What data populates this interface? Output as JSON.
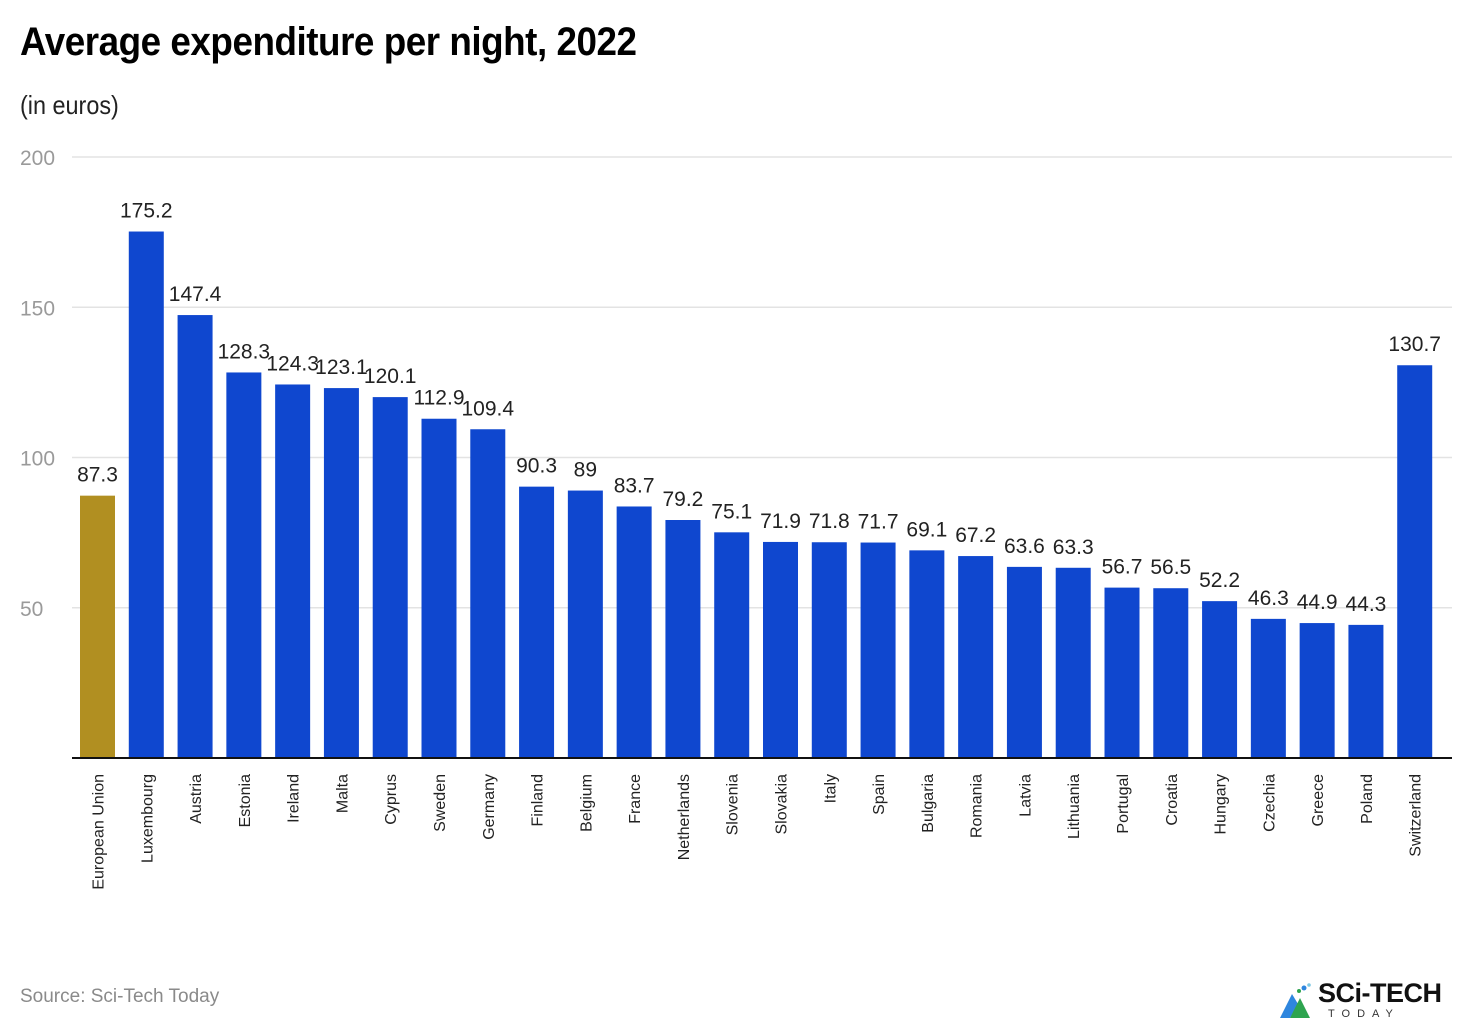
{
  "header": {
    "title": "Average expenditure per night, 2022",
    "subtitle": "(in euros)"
  },
  "footer": {
    "source": "Source: Sci-Tech Today",
    "logo_main": "SCi-TECH",
    "logo_sub": "TODAY"
  },
  "colors": {
    "highlight": "#B18F21",
    "bar": "#0F47CF",
    "grid": "#e3e3e3",
    "axis": "#111111"
  },
  "chart_data": {
    "type": "bar",
    "title": "Average expenditure per night, 2022",
    "subtitle": "(in euros)",
    "xlabel": "",
    "ylabel": "",
    "ylim": [
      0,
      200
    ],
    "yticks": [
      50,
      100,
      150,
      200
    ],
    "grid": true,
    "legend": "none",
    "categories": [
      "European Union",
      "Luxembourg",
      "Austria",
      "Estonia",
      "Ireland",
      "Malta",
      "Cyprus",
      "Sweden",
      "Germany",
      "Finland",
      "Belgium",
      "France",
      "Netherlands",
      "Slovenia",
      "Slovakia",
      "Italy",
      "Spain",
      "Bulgaria",
      "Romania",
      "Latvia",
      "Lithuania",
      "Portugal",
      "Croatia",
      "Hungary",
      "Czechia",
      "Greece",
      "Poland",
      "Switzerland"
    ],
    "values": [
      87.3,
      175.2,
      147.4,
      128.3,
      124.3,
      123.1,
      120.1,
      112.9,
      109.4,
      90.3,
      89,
      83.7,
      79.2,
      75.1,
      71.9,
      71.8,
      71.7,
      69.1,
      67.2,
      63.6,
      63.3,
      56.7,
      56.5,
      52.2,
      46.3,
      44.9,
      44.3,
      130.7
    ],
    "value_labels": [
      "87.3",
      "175.2",
      "147.4",
      "128.3",
      "124.3",
      "123.1",
      "120.1",
      "112.9",
      "109.4",
      "90.3",
      "89",
      "83.7",
      "79.2",
      "75.1",
      "71.9",
      "71.8",
      "71.7",
      "69.1",
      "67.2",
      "63.6",
      "63.3",
      "56.7",
      "56.5",
      "52.2",
      "46.3",
      "44.9",
      "44.3",
      "130.7"
    ],
    "highlighted": [
      "European Union"
    ]
  }
}
